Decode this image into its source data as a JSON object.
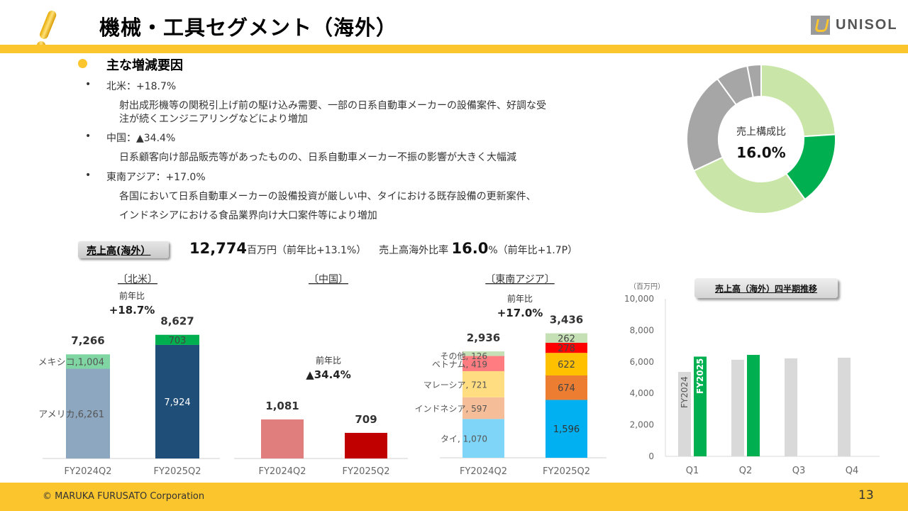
{
  "header": {
    "title": "機械・工具セグメント（海外）",
    "logo_text": "UNISOL",
    "accent": "#FBC52E"
  },
  "factors": {
    "heading": "主な増減要因",
    "items": [
      {
        "label": "北米：+18.7%",
        "lines": [
          "射出成形機等の関税引上げ前の駆け込み需要、一部の日系自動車メーカーの設備案件、好調な受",
          "注が続くエンジニアリングなどにより増加"
        ]
      },
      {
        "label": "中国：▲34.4%",
        "lines": [
          "日系顧客向け部品販売等があったものの、日系自動車メーカー不振の影響が大きく大幅減"
        ]
      },
      {
        "label": "東南アジア：+17.0%",
        "lines": [
          "各国において日系自動車メーカーの設備投資が厳しい中、タイにおける既存設備の更新案件、",
          "インドネシアにおける食品業界向け大口案件等により増加"
        ]
      }
    ]
  },
  "sales": {
    "label": "売上高(海外）",
    "value": "12,774",
    "unit": "百万円",
    "yoy": "（前年比+13.1%）",
    "ratio_label": "売上高海外比率",
    "ratio_value": "16.0",
    "ratio_unit": "%",
    "ratio_yoy": "（前年比+1.7P）"
  },
  "footer": {
    "copyright": "© MARUKA FURUSATO Corporation",
    "page": "13"
  },
  "chart_data": [
    {
      "type": "pie",
      "variant": "donut",
      "center_label": "売上構成比",
      "center_value": "16.0%",
      "values": [
        0.24,
        0.16,
        0.28,
        0.22,
        0.07,
        0.03
      ],
      "colors": [
        "#C9E6A8",
        "#00B050",
        "#C9E6A8",
        "#A6A6A6",
        "#A6A6A6",
        "#A6A6A6"
      ],
      "highlight_index": 1
    },
    {
      "type": "bar",
      "stacked": true,
      "title": "〔北米〕",
      "categories": [
        "FY2024Q2",
        "FY2025Q2"
      ],
      "totals": [
        "7,266",
        "8,627"
      ],
      "yoy_label": "前年比",
      "yoy": "+18.7%",
      "series": [
        {
          "name": "アメリカ",
          "values": [
            6261,
            7924
          ],
          "labels": [
            "アメリカ,6,261",
            "7,924"
          ],
          "colors": [
            "#8EA7C0",
            "#1F4E79"
          ]
        },
        {
          "name": "メキシコ",
          "values": [
            1004,
            703
          ],
          "labels": [
            "メキシコ,1,004",
            "703"
          ],
          "colors": [
            "#7FD6A3",
            "#00B050"
          ]
        }
      ]
    },
    {
      "type": "bar",
      "title": "〔中国〕",
      "categories": [
        "FY2024Q2",
        "FY2025Q2"
      ],
      "values": [
        1081,
        709
      ],
      "totals": [
        "1,081",
        "709"
      ],
      "colors": [
        "#E07E7E",
        "#C00000"
      ],
      "yoy_label": "前年比",
      "yoy": "▲34.4%"
    },
    {
      "type": "bar",
      "stacked": true,
      "title": "〔東南アジア〕",
      "categories": [
        "FY2024Q2",
        "FY2025Q2"
      ],
      "totals": [
        "2,936",
        "3,436"
      ],
      "yoy_label": "前年比",
      "yoy": "+17.0%",
      "series": [
        {
          "name": "タイ",
          "values": [
            1070,
            1596
          ],
          "labels": [
            "タイ, 1,070",
            "1,596"
          ],
          "colors": [
            "#7FD5F7",
            "#00B0F0"
          ]
        },
        {
          "name": "インドネシア",
          "values": [
            597,
            674
          ],
          "labels": [
            "インドネシア, 597",
            "674"
          ],
          "colors": [
            "#F6BE98",
            "#ED7D31"
          ]
        },
        {
          "name": "マレーシア",
          "values": [
            721,
            622
          ],
          "labels": [
            "マレーシア, 721",
            "622"
          ],
          "colors": [
            "#FFDD80",
            "#FFC000"
          ]
        },
        {
          "name": "ベトナム",
          "values": [
            419,
            278
          ],
          "labels": [
            "ベトナム, 419",
            "278"
          ],
          "colors": [
            "#FF7C80",
            "#FF0000"
          ]
        },
        {
          "name": "その他",
          "values": [
            126,
            262
          ],
          "labels": [
            "その他, 126",
            "262"
          ],
          "colors": [
            "#C5E0B4",
            "#C5E0B4"
          ]
        }
      ]
    },
    {
      "type": "bar",
      "title": "売上高（海外）四半期推移",
      "unit": "（百万円）",
      "categories": [
        "Q1",
        "Q2",
        "Q3",
        "Q4"
      ],
      "ylim": [
        0,
        10000
      ],
      "yticks": [
        "0",
        "2,000",
        "4,000",
        "6,000",
        "8,000",
        "10,000"
      ],
      "series": [
        {
          "name": "FY2024",
          "values": [
            5360,
            6130,
            6220,
            6260
          ],
          "color": "#D9D9D9"
        },
        {
          "name": "FY2025",
          "values": [
            6330,
            6440,
            null,
            null
          ],
          "color": "#00B050"
        }
      ]
    }
  ]
}
